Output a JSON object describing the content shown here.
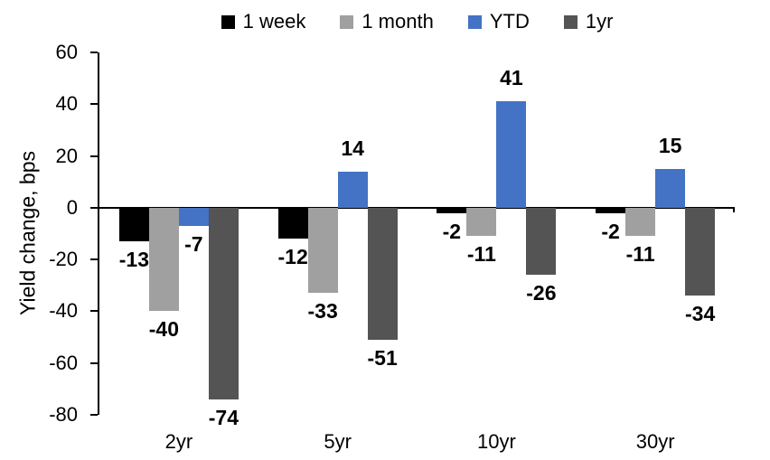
{
  "chart_data": {
    "type": "bar",
    "title": "",
    "ylabel": "Yield change, bps",
    "xlabel": "",
    "categories": [
      "2yr",
      "5yr",
      "10yr",
      "30yr"
    ],
    "series": [
      {
        "name": "1 week",
        "color": "#000000",
        "values": [
          -13,
          -12,
          -2,
          -2
        ]
      },
      {
        "name": "1 month",
        "color": "#A0A0A0",
        "values": [
          -40,
          -33,
          -11,
          -11
        ]
      },
      {
        "name": "YTD",
        "color": "#4472C4",
        "values": [
          -7,
          14,
          41,
          15
        ]
      },
      {
        "name": "1yr",
        "color": "#545454",
        "values": [
          -74,
          -51,
          -26,
          -34
        ]
      }
    ],
    "ylim": [
      -80,
      60
    ],
    "ytick_step": 20,
    "yticks": [
      60,
      40,
      20,
      0,
      -20,
      -40,
      -60,
      -80
    ],
    "legend_position": "top",
    "grid": false,
    "data_labels": true,
    "axis_color": "#000000",
    "background": "#FFFFFF"
  }
}
